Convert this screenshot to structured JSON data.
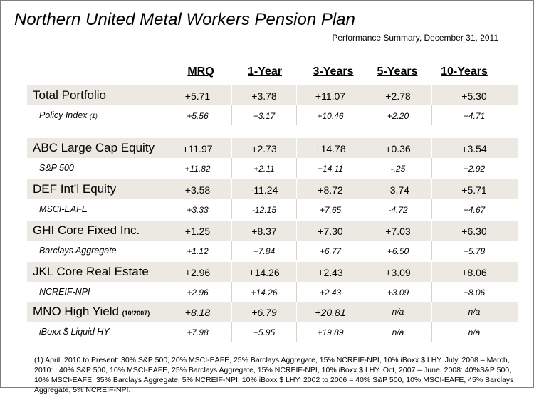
{
  "title": "Northern United Metal Workers Pension Plan",
  "subtitle": "Performance Summary, December 31, 2011",
  "columns": [
    "MRQ",
    "1-Year",
    "3-Years",
    "5-Years",
    "10-Years"
  ],
  "rows": [
    {
      "label": "Total Portfolio",
      "values": [
        "+5.71",
        "+3.78",
        "+11.07",
        "+2.78",
        "+5.30"
      ]
    },
    {
      "label": "Policy Index",
      "note": "(1)",
      "values": [
        "+5.56",
        "+3.17",
        "+10.46",
        "+2.20",
        "+4.71"
      ]
    },
    {
      "label": "ABC Large Cap Equity",
      "values": [
        "+11.97",
        "+2.73",
        "+14.78",
        "+0.36",
        "+3.54"
      ]
    },
    {
      "label": "S&P 500",
      "values": [
        "+11.82",
        "+2.11",
        "+14.11",
        "-.25",
        "+2.92"
      ]
    },
    {
      "label": "DEF Int’l Equity",
      "values": [
        "+3.58",
        "-11.24",
        "+8.72",
        "-3.74",
        "+5.71"
      ]
    },
    {
      "label": "MSCI-EAFE",
      "values": [
        "+3.33",
        "-12.15",
        "+7.65",
        "-4.72",
        "+4.67"
      ]
    },
    {
      "label": "GHI Core Fixed Inc.",
      "values": [
        "+1.25",
        "+8.37",
        "+7.30",
        "+7.03",
        "+6.30"
      ]
    },
    {
      "label": "Barclays Aggregate",
      "values": [
        "+1.12",
        "+7.84",
        "+6.77",
        "+6.50",
        "+5.78"
      ]
    },
    {
      "label": "JKL Core Real Estate",
      "values": [
        "+2.96",
        "+14.26",
        "+2.43",
        "+3.09",
        "+8.06"
      ]
    },
    {
      "label": "NCREIF-NPI",
      "values": [
        "+2.96",
        "+14.26",
        "+2.43",
        "+3.09",
        "+8.06"
      ]
    },
    {
      "label": "MNO High Yield",
      "note": "(10/2007)",
      "values": [
        "+8.18",
        "+6.79",
        "+20.81",
        "n/a",
        "n/a"
      ]
    },
    {
      "label": "iBoxx $ Liquid HY",
      "values": [
        "+7.98",
        "+5.95",
        "+19.89",
        "n/a",
        "n/a"
      ]
    }
  ],
  "footnote": "(1) April, 2010 to Present: 30% S&P 500, 20% MSCI-EAFE, 25% Barclays Aggregate, 15% NCREIF-NPI, 10% iBoxx $ LHY.  July, 2008 – March, 2010: : 40% S&P 500, 10% MSCI-EAFE, 25% Barclays Aggregate, 15% NCREIF-NPI, 10% iBoxx $ LHY.  Oct, 2007 – June, 2008: 40%S&P 500, 10% MSCI-EAFE, 35% Barclays Aggregate, 5% NCREIF-NPI, 10% iBoxx $ LHY.  2002 to 2006 = 40% S&P 500, 10% MSCI-EAFE, 45% Barclays Aggregate, 5% NCREIF-NPI."
}
